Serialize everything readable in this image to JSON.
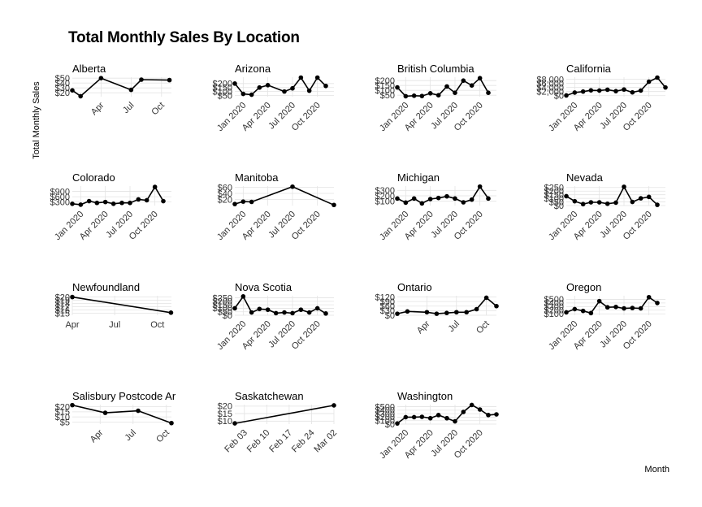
{
  "title": "Total Monthly Sales By Location",
  "ylabel": "Total Monthly Sales",
  "xlabel": "Month",
  "chart_data": {
    "type": "line",
    "title": "Total Monthly Sales By Location",
    "xlabel": "Month",
    "ylabel": "Total Monthly Sales",
    "grid": true,
    "facets": [
      {
        "name": "Alberta",
        "xlim": [
          "2020-01-05",
          "2020-10-31"
        ],
        "ylim": [
          12,
          52
        ],
        "yticks": [
          20,
          30,
          40,
          50
        ],
        "ytick_labels": [
          "$20",
          "$30",
          "$40",
          "$50"
        ],
        "xticks": [
          "2020-04-01",
          "2020-07-01",
          "2020-10-01"
        ],
        "xtick_labels": [
          "Apr",
          "Jul",
          "Oct"
        ],
        "xtick_rotated": true,
        "points": [
          [
            "2020-01-05",
            25
          ],
          [
            "2020-01-30",
            13
          ],
          [
            "2020-04-01",
            50
          ],
          [
            "2020-07-01",
            26
          ],
          [
            "2020-08-01",
            47
          ],
          [
            "2020-10-25",
            46
          ]
        ]
      },
      {
        "name": "Arizona",
        "xlim": [
          "2019-12-01",
          "2020-12-01"
        ],
        "ylim": [
          35,
          280
        ],
        "yticks": [
          50,
          100,
          150,
          200
        ],
        "ytick_labels": [
          "$50",
          "$100",
          "$150",
          "$200"
        ],
        "xticks": [
          "2020-01-01",
          "2020-04-01",
          "2020-07-01",
          "2020-10-01"
        ],
        "xtick_labels": [
          "Jan 2020",
          "Apr 2020",
          "Jul 2020",
          "Oct 2020"
        ],
        "xtick_rotated": true,
        "points": [
          [
            "2019-12-01",
            200
          ],
          [
            "2020-01-01",
            70
          ],
          [
            "2020-02-01",
            60
          ],
          [
            "2020-03-01",
            150
          ],
          [
            "2020-04-01",
            180
          ],
          [
            "2020-06-01",
            100
          ],
          [
            "2020-07-01",
            140
          ],
          [
            "2020-08-01",
            275
          ],
          [
            "2020-09-01",
            110
          ],
          [
            "2020-10-01",
            275
          ],
          [
            "2020-11-01",
            170
          ]
        ]
      },
      {
        "name": "British Columbia",
        "xlim": [
          "2019-12-01",
          "2020-12-01"
        ],
        "ylim": [
          35,
          235
        ],
        "yticks": [
          50,
          100,
          150,
          200
        ],
        "ytick_labels": [
          "$50",
          "$100",
          "$150",
          "$200"
        ],
        "xticks": [
          "2020-01-01",
          "2020-04-01",
          "2020-07-01",
          "2020-10-01"
        ],
        "xtick_labels": [
          "Jan 2020",
          "Apr 2020",
          "Jul 2020",
          "Oct 2020"
        ],
        "xtick_rotated": true,
        "points": [
          [
            "2019-12-01",
            130
          ],
          [
            "2020-01-01",
            40
          ],
          [
            "2020-02-01",
            45
          ],
          [
            "2020-03-01",
            42
          ],
          [
            "2020-04-01",
            70
          ],
          [
            "2020-05-01",
            50
          ],
          [
            "2020-06-01",
            140
          ],
          [
            "2020-07-01",
            75
          ],
          [
            "2020-08-01",
            200
          ],
          [
            "2020-09-01",
            150
          ],
          [
            "2020-10-01",
            225
          ],
          [
            "2020-11-01",
            75
          ]
        ]
      },
      {
        "name": "California",
        "xlim": [
          "2019-12-01",
          "2020-12-01"
        ],
        "ylim": [
          -500,
          9000
        ],
        "yticks": [
          0,
          2000,
          4000,
          6000,
          8000
        ],
        "ytick_labels": [
          "$0",
          "$2,000",
          "$4,000",
          "$6,000",
          "$8,000"
        ],
        "xticks": [
          "2020-01-01",
          "2020-04-01",
          "2020-07-01",
          "2020-10-01"
        ],
        "xtick_labels": [
          "Jan 2020",
          "Apr 2020",
          "Jul 2020",
          "Oct 2020"
        ],
        "xtick_rotated": true,
        "points": [
          [
            "2019-12-01",
            100
          ],
          [
            "2020-01-01",
            1500
          ],
          [
            "2020-02-01",
            2000
          ],
          [
            "2020-03-01",
            2600
          ],
          [
            "2020-04-01",
            2500
          ],
          [
            "2020-05-01",
            2900
          ],
          [
            "2020-06-01",
            2200
          ],
          [
            "2020-07-01",
            3000
          ],
          [
            "2020-08-01",
            1600
          ],
          [
            "2020-09-01",
            2500
          ],
          [
            "2020-10-01",
            6800
          ],
          [
            "2020-11-01",
            8800
          ],
          [
            "2020-12-01",
            4000
          ]
        ]
      },
      {
        "name": "Colorado",
        "xlim": [
          "2019-12-01",
          "2020-12-01"
        ],
        "ylim": [
          100,
          1200
        ],
        "yticks": [
          300,
          600,
          900
        ],
        "ytick_labels": [
          "$300",
          "$600",
          "$900"
        ],
        "xticks": [
          "2020-01-01",
          "2020-04-01",
          "2020-07-01",
          "2020-10-01"
        ],
        "xtick_labels": [
          "Jan 2020",
          "Apr 2020",
          "Jul 2020",
          "Oct 2020"
        ],
        "xtick_rotated": true,
        "points": [
          [
            "2019-12-01",
            200
          ],
          [
            "2020-01-01",
            150
          ],
          [
            "2020-02-01",
            350
          ],
          [
            "2020-03-01",
            250
          ],
          [
            "2020-04-01",
            300
          ],
          [
            "2020-05-01",
            200
          ],
          [
            "2020-06-01",
            250
          ],
          [
            "2020-07-01",
            250
          ],
          [
            "2020-08-01",
            450
          ],
          [
            "2020-09-01",
            400
          ],
          [
            "2020-10-01",
            1150
          ],
          [
            "2020-11-01",
            350
          ]
        ]
      },
      {
        "name": "Manitoba",
        "xlim": [
          "2019-12-01",
          "2020-12-01"
        ],
        "ylim": [
          0,
          64
        ],
        "yticks": [
          20,
          40,
          60
        ],
        "ytick_labels": [
          "$20",
          "$40",
          "$60"
        ],
        "xticks": [
          "2020-01-01",
          "2020-04-01",
          "2020-07-01",
          "2020-10-01"
        ],
        "xtick_labels": [
          "Jan 2020",
          "Apr 2020",
          "Jul 2020",
          "Oct 2020"
        ],
        "xtick_rotated": true,
        "points": [
          [
            "2019-12-01",
            5
          ],
          [
            "2020-01-01",
            13
          ],
          [
            "2020-02-01",
            12
          ],
          [
            "2020-07-01",
            62
          ],
          [
            "2020-12-01",
            2
          ]
        ]
      },
      {
        "name": "Michigan",
        "xlim": [
          "2019-12-01",
          "2020-12-01"
        ],
        "ylim": [
          20,
          380
        ],
        "yticks": [
          100,
          200,
          300
        ],
        "ytick_labels": [
          "$100",
          "$200",
          "$300"
        ],
        "xticks": [
          "2020-01-01",
          "2020-04-01",
          "2020-07-01",
          "2020-10-01"
        ],
        "xtick_labels": [
          "Jan 2020",
          "Apr 2020",
          "Jul 2020",
          "Oct 2020"
        ],
        "xtick_rotated": true,
        "points": [
          [
            "2019-12-01",
            150
          ],
          [
            "2020-01-01",
            75
          ],
          [
            "2020-02-01",
            150
          ],
          [
            "2020-03-01",
            60
          ],
          [
            "2020-04-01",
            140
          ],
          [
            "2020-05-01",
            160
          ],
          [
            "2020-06-01",
            190
          ],
          [
            "2020-07-01",
            150
          ],
          [
            "2020-08-01",
            80
          ],
          [
            "2020-09-01",
            130
          ],
          [
            "2020-10-01",
            370
          ],
          [
            "2020-11-01",
            150
          ]
        ]
      },
      {
        "name": "Nevada",
        "xlim": [
          "2019-12-01",
          "2020-12-01"
        ],
        "ylim": [
          0,
          270
        ],
        "yticks": [
          0,
          50,
          100,
          150,
          200,
          250
        ],
        "ytick_labels": [
          "$0",
          "$50",
          "$100",
          "$150",
          "$200",
          "$250"
        ],
        "xticks": [
          "2020-01-01",
          "2020-04-01",
          "2020-07-01",
          "2020-10-01"
        ],
        "xtick_labels": [
          "Jan 2020",
          "Apr 2020",
          "Jul 2020",
          "Oct 2020"
        ],
        "xtick_rotated": true,
        "points": [
          [
            "2019-12-01",
            130
          ],
          [
            "2020-01-01",
            60
          ],
          [
            "2020-02-01",
            20
          ],
          [
            "2020-03-01",
            45
          ],
          [
            "2020-04-01",
            45
          ],
          [
            "2020-05-01",
            25
          ],
          [
            "2020-06-01",
            40
          ],
          [
            "2020-07-01",
            260
          ],
          [
            "2020-08-01",
            50
          ],
          [
            "2020-09-01",
            100
          ],
          [
            "2020-10-01",
            120
          ],
          [
            "2020-11-01",
            10
          ]
        ]
      },
      {
        "name": "Newfoundland",
        "xlim": [
          "2020-04-01",
          "2020-10-31"
        ],
        "ylim": [
          14.4,
          20.4
        ],
        "yticks": [
          15,
          16,
          17,
          18,
          19,
          20
        ],
        "ytick_labels": [
          "$15",
          "$16",
          "$17",
          "$18",
          "$19",
          "$20"
        ],
        "xticks": [
          "2020-04-01",
          "2020-07-01",
          "2020-10-01"
        ],
        "xtick_labels": [
          "Apr",
          "Jul",
          "Oct"
        ],
        "xtick_rotated": false,
        "points": [
          [
            "2020-04-01",
            20
          ],
          [
            "2020-10-30",
            15.2
          ]
        ]
      },
      {
        "name": "Nova Scotia",
        "xlim": [
          "2019-12-01",
          "2020-12-01"
        ],
        "ylim": [
          0,
          280
        ],
        "yticks": [
          0,
          50,
          100,
          150,
          200,
          250
        ],
        "ytick_labels": [
          "$0",
          "$50",
          "$100",
          "$150",
          "$200",
          "$250"
        ],
        "xticks": [
          "2020-01-01",
          "2020-04-01",
          "2020-07-01",
          "2020-10-01"
        ],
        "xtick_labels": [
          "Jan 2020",
          "Apr 2020",
          "Jul 2020",
          "Oct 2020"
        ],
        "xtick_rotated": true,
        "points": [
          [
            "2019-12-01",
            100
          ],
          [
            "2020-01-01",
            270
          ],
          [
            "2020-02-01",
            40
          ],
          [
            "2020-03-01",
            90
          ],
          [
            "2020-04-01",
            80
          ],
          [
            "2020-05-01",
            30
          ],
          [
            "2020-06-01",
            40
          ],
          [
            "2020-07-01",
            30
          ],
          [
            "2020-08-01",
            80
          ],
          [
            "2020-09-01",
            40
          ],
          [
            "2020-10-01",
            100
          ],
          [
            "2020-11-01",
            25
          ]
        ]
      },
      {
        "name": "Ontario",
        "xlim": [
          "2020-01-01",
          "2020-11-01"
        ],
        "ylim": [
          0,
          128
        ],
        "yticks": [
          0,
          30,
          60,
          90,
          120
        ],
        "ytick_labels": [
          "$0",
          "$30",
          "$60",
          "$90",
          "$120"
        ],
        "xticks": [
          "2020-04-01",
          "2020-07-01",
          "2020-10-01"
        ],
        "xtick_labels": [
          "Apr",
          "Jul",
          "Oct"
        ],
        "xtick_rotated": true,
        "points": [
          [
            "2020-01-01",
            10
          ],
          [
            "2020-02-01",
            25
          ],
          [
            "2020-04-01",
            20
          ],
          [
            "2020-05-01",
            10
          ],
          [
            "2020-06-01",
            15
          ],
          [
            "2020-07-01",
            20
          ],
          [
            "2020-08-01",
            20
          ],
          [
            "2020-09-01",
            40
          ],
          [
            "2020-10-01",
            115
          ],
          [
            "2020-11-01",
            60
          ]
        ]
      },
      {
        "name": "Oregon",
        "xlim": [
          "2019-12-01",
          "2020-12-01"
        ],
        "ylim": [
          60,
          600
        ],
        "yticks": [
          100,
          200,
          300,
          400,
          500
        ],
        "ytick_labels": [
          "$100",
          "$200",
          "$300",
          "$400",
          "$500"
        ],
        "xticks": [
          "2020-01-01",
          "2020-04-01",
          "2020-07-01",
          "2020-10-01"
        ],
        "xtick_labels": [
          "Jan 2020",
          "Apr 2020",
          "Jul 2020",
          "Oct 2020"
        ],
        "xtick_rotated": true,
        "points": [
          [
            "2019-12-01",
            140
          ],
          [
            "2020-01-01",
            230
          ],
          [
            "2020-02-01",
            180
          ],
          [
            "2020-03-01",
            120
          ],
          [
            "2020-04-01",
            450
          ],
          [
            "2020-05-01",
            280
          ],
          [
            "2020-06-01",
            290
          ],
          [
            "2020-07-01",
            250
          ],
          [
            "2020-08-01",
            260
          ],
          [
            "2020-09-01",
            250
          ],
          [
            "2020-10-01",
            560
          ],
          [
            "2020-11-01",
            400
          ]
        ]
      },
      {
        "name": "Salisbury Postcode Area",
        "xlim": [
          "2020-01-15",
          "2020-10-15"
        ],
        "ylim": [
          3,
          22
        ],
        "yticks": [
          5,
          10,
          15,
          20
        ],
        "ytick_labels": [
          "$5",
          "$10",
          "$15",
          "$20"
        ],
        "xticks": [
          "2020-04-01",
          "2020-07-01",
          "2020-10-01"
        ],
        "xtick_labels": [
          "Apr",
          "Jul",
          "Oct"
        ],
        "xtick_rotated": true,
        "points": [
          [
            "2020-01-15",
            21.5
          ],
          [
            "2020-04-15",
            14
          ],
          [
            "2020-07-15",
            16
          ],
          [
            "2020-10-15",
            4
          ]
        ]
      },
      {
        "name": "Saskatchewan",
        "xlim": [
          "2020-01-31",
          "2020-03-02"
        ],
        "ylim": [
          8,
          21
        ],
        "yticks": [
          10,
          15,
          20
        ],
        "ytick_labels": [
          "$10",
          "$15",
          "$20"
        ],
        "xticks": [
          "2020-02-03",
          "2020-02-10",
          "2020-02-17",
          "2020-02-24",
          "2020-03-02"
        ],
        "xtick_labels": [
          "Feb 03",
          "Feb 10",
          "Feb 17",
          "Feb 24",
          "Mar 02"
        ],
        "xtick_rotated": true,
        "points": [
          [
            "2020-01-31",
            8.5
          ],
          [
            "2020-03-02",
            20.5
          ]
        ]
      },
      {
        "name": "Washington",
        "xlim": [
          "2019-12-01",
          "2020-12-01"
        ],
        "ylim": [
          0,
          560
        ],
        "yticks": [
          0,
          100,
          200,
          300,
          400,
          500
        ],
        "ytick_labels": [
          "$0",
          "$100",
          "$200",
          "$300",
          "$400",
          "$500"
        ],
        "xticks": [
          "2020-01-01",
          "2020-04-01",
          "2020-07-01",
          "2020-10-01"
        ],
        "xtick_labels": [
          "Jan 2020",
          "Apr 2020",
          "Jul 2020",
          "Oct 2020"
        ],
        "xtick_rotated": true,
        "points": [
          [
            "2019-12-01",
            20
          ],
          [
            "2020-01-01",
            200
          ],
          [
            "2020-02-01",
            200
          ],
          [
            "2020-03-01",
            210
          ],
          [
            "2020-04-01",
            170
          ],
          [
            "2020-05-01",
            260
          ],
          [
            "2020-06-01",
            170
          ],
          [
            "2020-07-01",
            80
          ],
          [
            "2020-08-01",
            350
          ],
          [
            "2020-09-01",
            550
          ],
          [
            "2020-10-01",
            420
          ],
          [
            "2020-11-01",
            260
          ],
          [
            "2020-12-01",
            280
          ]
        ]
      }
    ]
  }
}
